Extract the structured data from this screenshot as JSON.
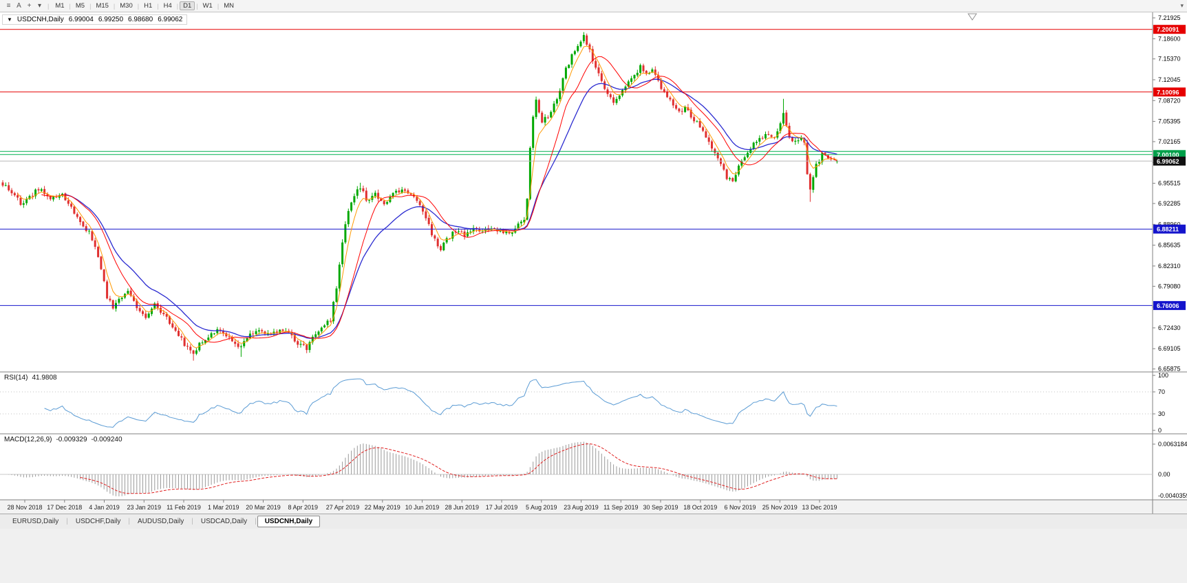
{
  "toolbar": {
    "left_icons": [
      {
        "name": "chart-list-icon",
        "glyph": "≡"
      },
      {
        "name": "text-tool-icon",
        "glyph": "A"
      },
      {
        "name": "crosshair-icon",
        "glyph": "+"
      },
      {
        "name": "objects-dropdown-caret-icon",
        "glyph": "▾"
      }
    ],
    "timeframes": [
      "M1",
      "M5",
      "M15",
      "M30",
      "H1",
      "H4",
      "D1",
      "W1",
      "MN"
    ],
    "active_timeframe": "D1",
    "right_caret": "▾"
  },
  "chart": {
    "symbol_line": {
      "caret": "▼",
      "symbol": "USDCNH,Daily",
      "open": "6.99004",
      "high": "6.99250",
      "low": "6.98680",
      "close": "6.99062"
    },
    "price_axis": {
      "top_price": 7.228,
      "bottom_price": 6.654,
      "ticks": [
        "7.21925",
        "7.18600",
        "7.15370",
        "7.12045",
        "7.08720",
        "7.05395",
        "7.02165",
        "6.98840",
        "6.95515",
        "6.92285",
        "6.88960",
        "6.85635",
        "6.82310",
        "6.79080",
        "6.75755",
        "6.72430",
        "6.69105",
        "6.65875"
      ]
    },
    "levels": [
      {
        "price": 7.20091,
        "label": "7.20091",
        "color": "#e60000",
        "badge": "#e60000"
      },
      {
        "price": 7.10096,
        "label": "7.10096",
        "color": "#e60000",
        "badge": "#e60000"
      },
      {
        "price": 7.006,
        "label": null,
        "color": "#00b050",
        "badge": null
      },
      {
        "price": 7.001,
        "label": "7.00100",
        "color": "#00b050",
        "badge": "#00a04a"
      },
      {
        "price": 6.99062,
        "label": "6.99062",
        "color": "#b8b8b8",
        "badge": "#111111"
      },
      {
        "price": 6.88211,
        "label": "6.88211",
        "color": "#1414cc",
        "badge": "#1414cc"
      },
      {
        "price": 6.76006,
        "label": "6.76006",
        "color": "#1414cc",
        "badge": "#1414cc"
      }
    ],
    "colors": {
      "up": "#00a800",
      "down": "#e03030",
      "ma_fast": "#ff9900",
      "ma_mid": "#ff0000",
      "ma_slow": "#2a2ad0",
      "rsi": "#5a9bd4",
      "macd_hist": "#9a9a9a",
      "macd_signal": "#e02020"
    }
  },
  "chart_data": {
    "type": "candlestick",
    "symbol": "USDCNH",
    "timeframe": "Daily",
    "n_candles": 281,
    "current_bar": {
      "open": 6.99004,
      "high": 6.9925,
      "low": 6.9868,
      "close": 6.99062
    },
    "price_path_anchors": [
      [
        0,
        6.955
      ],
      [
        4,
        6.938
      ],
      [
        6,
        6.92
      ],
      [
        9,
        6.932
      ],
      [
        12,
        6.946
      ],
      [
        16,
        6.93
      ],
      [
        20,
        6.936
      ],
      [
        23,
        6.915
      ],
      [
        26,
        6.895
      ],
      [
        29,
        6.876
      ],
      [
        31,
        6.855
      ],
      [
        33,
        6.815
      ],
      [
        35,
        6.775
      ],
      [
        37,
        6.758
      ],
      [
        39,
        6.772
      ],
      [
        42,
        6.78
      ],
      [
        45,
        6.756
      ],
      [
        48,
        6.742
      ],
      [
        51,
        6.76
      ],
      [
        54,
        6.748
      ],
      [
        56,
        6.732
      ],
      [
        59,
        6.712
      ],
      [
        62,
        6.693
      ],
      [
        64,
        6.684
      ],
      [
        66,
        6.7
      ],
      [
        69,
        6.712
      ],
      [
        73,
        6.722
      ],
      [
        77,
        6.706
      ],
      [
        80,
        6.692
      ],
      [
        82,
        6.71
      ],
      [
        86,
        6.722
      ],
      [
        90,
        6.714
      ],
      [
        94,
        6.722
      ],
      [
        96,
        6.716
      ],
      [
        99,
        6.7
      ],
      [
        102,
        6.692
      ],
      [
        105,
        6.718
      ],
      [
        108,
        6.73
      ],
      [
        110,
        6.736
      ],
      [
        112,
        6.79
      ],
      [
        114,
        6.862
      ],
      [
        116,
        6.91
      ],
      [
        118,
        6.936
      ],
      [
        120,
        6.948
      ],
      [
        122,
        6.93
      ],
      [
        125,
        6.936
      ],
      [
        128,
        6.92
      ],
      [
        131,
        6.936
      ],
      [
        134,
        6.946
      ],
      [
        136,
        6.94
      ],
      [
        139,
        6.928
      ],
      [
        142,
        6.898
      ],
      [
        145,
        6.864
      ],
      [
        147,
        6.85
      ],
      [
        149,
        6.866
      ],
      [
        152,
        6.88
      ],
      [
        155,
        6.874
      ],
      [
        158,
        6.886
      ],
      [
        161,
        6.877
      ],
      [
        164,
        6.884
      ],
      [
        167,
        6.88
      ],
      [
        170,
        6.876
      ],
      [
        173,
        6.888
      ],
      [
        175,
        6.896
      ],
      [
        176,
        6.93
      ],
      [
        177,
        7.01
      ],
      [
        178,
        7.058
      ],
      [
        179,
        7.088
      ],
      [
        181,
        7.052
      ],
      [
        183,
        7.062
      ],
      [
        185,
        7.08
      ],
      [
        187,
        7.102
      ],
      [
        189,
        7.138
      ],
      [
        191,
        7.158
      ],
      [
        193,
        7.176
      ],
      [
        195,
        7.188
      ],
      [
        197,
        7.168
      ],
      [
        199,
        7.14
      ],
      [
        202,
        7.108
      ],
      [
        205,
        7.086
      ],
      [
        208,
        7.104
      ],
      [
        211,
        7.122
      ],
      [
        214,
        7.14
      ],
      [
        216,
        7.128
      ],
      [
        218,
        7.14
      ],
      [
        221,
        7.108
      ],
      [
        224,
        7.086
      ],
      [
        227,
        7.068
      ],
      [
        229,
        7.076
      ],
      [
        232,
        7.058
      ],
      [
        235,
        7.04
      ],
      [
        238,
        7.008
      ],
      [
        241,
        6.985
      ],
      [
        243,
        6.965
      ],
      [
        245,
        6.956
      ],
      [
        248,
        6.992
      ],
      [
        251,
        7.012
      ],
      [
        254,
        7.026
      ],
      [
        256,
        7.032
      ],
      [
        259,
        7.028
      ],
      [
        261,
        7.05
      ],
      [
        262,
        7.064
      ],
      [
        264,
        7.032
      ],
      [
        266,
        7.02
      ],
      [
        268,
        7.026
      ],
      [
        269,
        7.018
      ],
      [
        270,
        6.972
      ],
      [
        271,
        6.948
      ],
      [
        273,
        6.984
      ],
      [
        275,
        7.0
      ],
      [
        277,
        6.996
      ],
      [
        280,
        6.9906
      ]
    ],
    "spikes": [
      {
        "i": 64,
        "side": "low",
        "price": 6.672
      },
      {
        "i": 80,
        "side": "low",
        "price": 6.678
      },
      {
        "i": 102,
        "side": "low",
        "price": 6.686
      },
      {
        "i": 120,
        "side": "high",
        "price": 6.956
      },
      {
        "i": 195,
        "side": "high",
        "price": 7.1965
      },
      {
        "i": 262,
        "side": "high",
        "price": 7.09
      },
      {
        "i": 271,
        "side": "low",
        "price": 6.9255
      }
    ],
    "moving_averages": [
      {
        "name": "fast",
        "type": "ema",
        "period": 5
      },
      {
        "name": "medium",
        "type": "sma",
        "period": 13
      },
      {
        "name": "slow",
        "type": "ema",
        "period": 21
      }
    ],
    "rsi": {
      "label": "RSI(14)",
      "value": "41.9808",
      "period": 14,
      "level_lines": [
        70,
        30
      ],
      "axis": [
        "100",
        "70",
        "30",
        "0"
      ]
    },
    "macd": {
      "label": "MACD(12,26,9)",
      "value_main": "-0.009329",
      "value_signal": "-0.009240",
      "axis": [
        "0.0063184",
        "0.00",
        "-0.0040359"
      ]
    }
  },
  "date_axis": {
    "labels": [
      "28 Nov 2018",
      "17 Dec 2018",
      "4 Jan 2019",
      "23 Jan 2019",
      "11 Feb 2019",
      "1 Mar 2019",
      "20 Mar 2019",
      "8 Apr 2019",
      "27 Apr 2019",
      "22 May 2019",
      "10 Jun 2019",
      "28 Jun 2019",
      "17 Jul 2019",
      "5 Aug 2019",
      "23 Aug 2019",
      "11 Sep 2019",
      "30 Sep 2019",
      "18 Oct 2019",
      "6 Nov 2019",
      "25 Nov 2019",
      "13 Dec 2019"
    ]
  },
  "tabs": {
    "items": [
      "EURUSD,Daily",
      "USDCHF,Daily",
      "AUDUSD,Daily",
      "USDCAD,Daily",
      "USDCNH,Daily"
    ],
    "active": "USDCNH,Daily"
  }
}
